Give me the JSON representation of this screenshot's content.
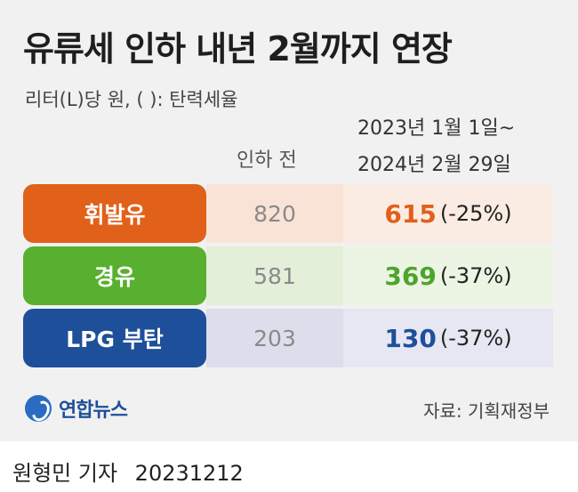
{
  "title": "유류세 인하 내년 2월까지 연장",
  "subtitle": "리터(L)당 원, ( ): 탄력세율",
  "columns": {
    "before": "인하 전",
    "after_line1": "2023년 1월 1일~",
    "after_line2": "2024년 2월 29일"
  },
  "rows": [
    {
      "label": "휘발유",
      "before": "820",
      "after_price": "615",
      "after_rate": "(-25%)",
      "label_color": "#e1601a",
      "before_bg": "#f9e3d6",
      "after_bg": "#fbece3",
      "value_color": "#e1601a"
    },
    {
      "label": "경유",
      "before": "581",
      "after_price": "369",
      "after_rate": "(-37%)",
      "label_color": "#58b02e",
      "before_bg": "#e3efd9",
      "after_bg": "#ecf4e4",
      "value_color": "#4ca52a"
    },
    {
      "label": "LPG 부탄",
      "before": "203",
      "after_price": "130",
      "after_rate": "(-37%)",
      "label_color": "#1e4f9a",
      "before_bg": "#dcdeec",
      "after_bg": "#e6e7f2",
      "value_color": "#1e4f9a"
    }
  ],
  "logo": {
    "text": "연합뉴스",
    "icon": "yonhap-logo-icon"
  },
  "source": "자료: 기획재정부",
  "footer": {
    "byline": "원형민 기자",
    "date": "20231212"
  }
}
